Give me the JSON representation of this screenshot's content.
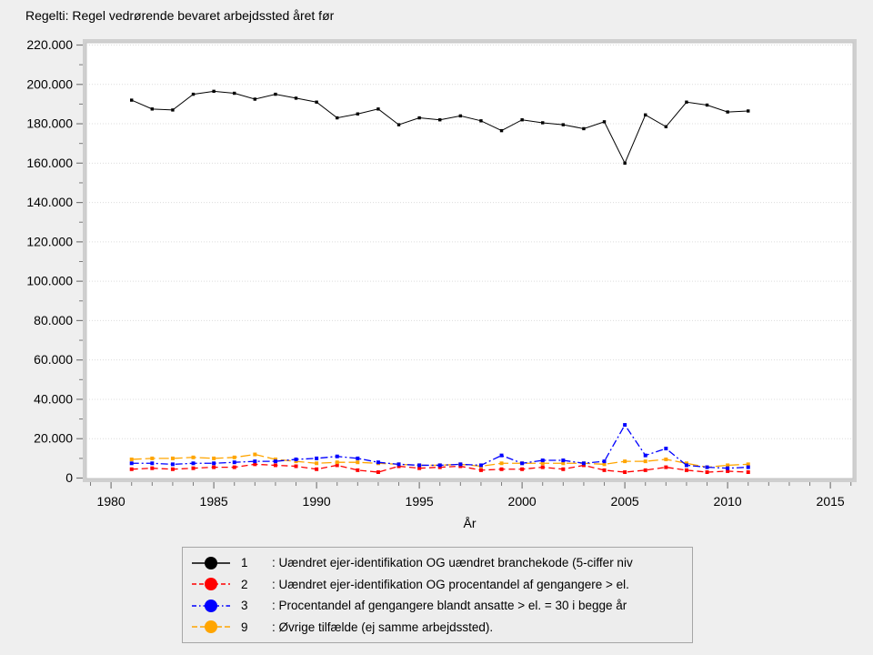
{
  "title": "Regelti: Regel vedrørende bevaret arbejdssted året før",
  "chart_data": {
    "type": "line",
    "title": "Regelti: Regel vedrørende bevaret arbejdssted året før",
    "xlabel": "År",
    "ylabel": "",
    "xlim": [
      1978.8,
      2016.1
    ],
    "ylim": [
      0,
      220000
    ],
    "grid": "horizontal-major-dotted",
    "legend_position": "bottom-center",
    "x_ticks_major": [
      1980,
      1985,
      1990,
      1995,
      2000,
      2005,
      2010,
      2015
    ],
    "x_tick_labels": [
      "1980",
      "1985",
      "1990",
      "1995",
      "2000",
      "2005",
      "2010",
      "2015"
    ],
    "x_minor_step": 1,
    "y_ticks_major": [
      0,
      20000,
      40000,
      60000,
      80000,
      100000,
      120000,
      140000,
      160000,
      180000,
      200000,
      220000
    ],
    "y_tick_labels": [
      "0",
      "20.000",
      "40.000",
      "60.000",
      "80.000",
      "100.000",
      "120.000",
      "140.000",
      "160.000",
      "180.000",
      "200.000",
      "220.000"
    ],
    "y_minor_step": 10000,
    "x": [
      1981,
      1982,
      1983,
      1984,
      1985,
      1986,
      1987,
      1988,
      1989,
      1990,
      1991,
      1992,
      1993,
      1994,
      1995,
      1996,
      1997,
      1998,
      1999,
      2000,
      2001,
      2002,
      2003,
      2004,
      2005,
      2006,
      2007,
      2008,
      2009,
      2010,
      2011
    ],
    "series": [
      {
        "name": "1",
        "label": ": Uændret ejer-identifikation OG uændret branchekode (5-ciffer niv",
        "color": "#000000",
        "line_style": "solid",
        "values": [
          192000,
          187500,
          187000,
          195000,
          196500,
          195500,
          192500,
          195000,
          193000,
          191000,
          183000,
          185000,
          187500,
          179500,
          183000,
          182000,
          184000,
          181500,
          176500,
          182000,
          180500,
          179500,
          177500,
          181000,
          160000,
          184500,
          178500,
          191000,
          189500,
          186000,
          186500
        ]
      },
      {
        "name": "2",
        "label": ": Uændret ejer-identifikation OG procentandel af gengangere > el.",
        "color": "#ff0000",
        "line_style": "dash",
        "values": [
          4500,
          5000,
          4500,
          5000,
          5500,
          5500,
          7000,
          6500,
          6000,
          4500,
          6500,
          4000,
          3000,
          6000,
          5000,
          5500,
          6000,
          4000,
          4500,
          4500,
          5500,
          4500,
          6500,
          4000,
          3000,
          4000,
          5500,
          4000,
          3000,
          3500,
          3000
        ]
      },
      {
        "name": "3",
        "label": ": Procentandel af gengangere blandt ansatte > el. = 30 i begge år",
        "color": "#0000ff",
        "line_style": "dash-dot",
        "values": [
          7500,
          7500,
          7000,
          7500,
          7500,
          8000,
          8500,
          8500,
          9500,
          10000,
          11000,
          10000,
          8000,
          7000,
          6500,
          6500,
          7000,
          6500,
          11500,
          7500,
          9000,
          9000,
          7500,
          8500,
          27000,
          11500,
          15000,
          6500,
          5500,
          5000,
          5500
        ]
      },
      {
        "name": "9",
        "label": ": Øvrige tilfælde (ej samme arbejdssted).",
        "color": "#ffa500",
        "line_style": "long-dash",
        "values": [
          9500,
          10000,
          10000,
          10500,
          10000,
          10500,
          12000,
          9500,
          8500,
          7500,
          8000,
          8000,
          7500,
          7000,
          6500,
          6500,
          7000,
          6000,
          7500,
          7500,
          7500,
          7500,
          7500,
          7000,
          8500,
          8500,
          9500,
          7500,
          5500,
          6500,
          7000
        ]
      }
    ]
  }
}
